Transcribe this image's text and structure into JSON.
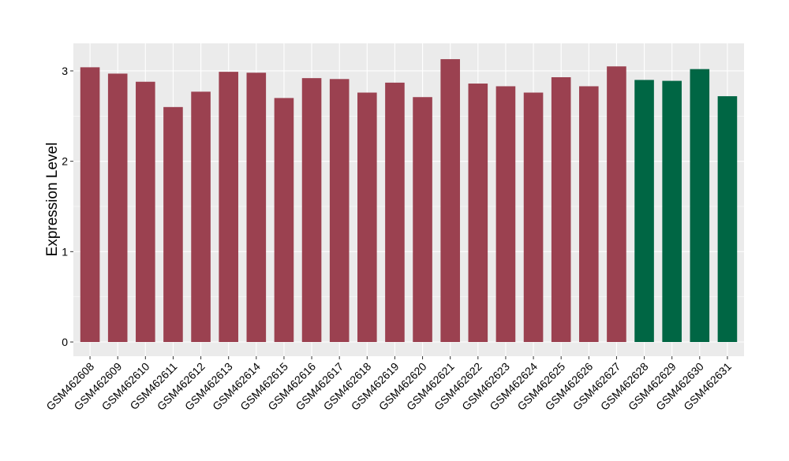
{
  "chart_data": {
    "type": "bar",
    "title": "",
    "xlabel": "",
    "ylabel": "Expression Level",
    "ylim": [
      -0.157,
      3.305
    ],
    "yticks": [
      0,
      1,
      2,
      3
    ],
    "grid": true,
    "categories": [
      "GSM462608",
      "GSM462609",
      "GSM462610",
      "GSM462611",
      "GSM462612",
      "GSM462613",
      "GSM462614",
      "GSM462615",
      "GSM462616",
      "GSM462617",
      "GSM462618",
      "GSM462619",
      "GSM462620",
      "GSM462621",
      "GSM462622",
      "GSM462623",
      "GSM462624",
      "GSM462625",
      "GSM462626",
      "GSM462627",
      "GSM462628",
      "GSM462629",
      "GSM462630",
      "GSM462631"
    ],
    "values": [
      3.04,
      2.97,
      2.88,
      2.6,
      2.77,
      2.99,
      2.98,
      2.7,
      2.92,
      2.91,
      2.76,
      2.87,
      2.71,
      3.13,
      2.86,
      2.83,
      2.76,
      2.93,
      2.83,
      3.05,
      2.9,
      2.89,
      3.02,
      2.72
    ],
    "groups": [
      "a",
      "a",
      "a",
      "a",
      "a",
      "a",
      "a",
      "a",
      "a",
      "a",
      "a",
      "a",
      "a",
      "a",
      "a",
      "a",
      "a",
      "a",
      "a",
      "a",
      "b",
      "b",
      "b",
      "b"
    ],
    "colors": {
      "a": "#9B4150",
      "b": "#006644",
      "panel": "#EBEBEB",
      "grid": "#FFFFFF"
    }
  }
}
